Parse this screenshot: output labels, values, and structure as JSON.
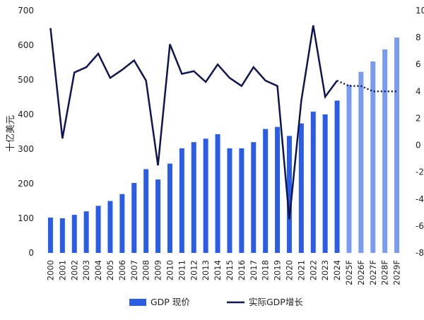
{
  "chart_data": {
    "type": "bar+line",
    "categories": [
      "2000",
      "2001",
      "2002",
      "2003",
      "2004",
      "2005",
      "2006",
      "2007",
      "2008",
      "2009",
      "2010",
      "2011",
      "2012",
      "2013",
      "2014",
      "2015",
      "2016",
      "2017",
      "2018",
      "2019",
      "2020",
      "2021",
      "2022",
      "2023",
      "2024",
      "2025F",
      "2026F",
      "2027F",
      "2028F",
      "2029F"
    ],
    "series": [
      {
        "name": "GDP 现价",
        "type": "bar",
        "axis": "left",
        "color": "#2b5ce6",
        "forecast_color": "#7a9cf0",
        "values": [
          102,
          100,
          110,
          120,
          136,
          150,
          170,
          202,
          242,
          212,
          258,
          302,
          320,
          330,
          343,
          302,
          302,
          320,
          358,
          364,
          338,
          374,
          408,
          400,
          440,
          486,
          523,
          553,
          588,
          622
        ]
      },
      {
        "name": "实际GDP增长",
        "type": "line",
        "axis": "right",
        "color": "#0d1650",
        "values": [
          8.7,
          0.5,
          5.4,
          5.8,
          6.8,
          5.0,
          5.6,
          6.3,
          4.8,
          -1.5,
          7.5,
          5.3,
          5.5,
          4.7,
          6.0,
          5.0,
          4.4,
          5.8,
          4.8,
          4.4,
          -5.5,
          3.3,
          8.9,
          3.6,
          4.8,
          4.4,
          4.4,
          4.0,
          4.0,
          4.0
        ],
        "forecast_from_index": 24
      }
    ],
    "ylabel": "十亿美元",
    "ylim": [
      0,
      700
    ],
    "yticks": [
      0,
      100,
      200,
      300,
      400,
      500,
      600,
      700
    ],
    "y2lim": [
      -8,
      10
    ],
    "y2ticks": [
      -8,
      -6,
      -4,
      -2,
      0,
      2,
      4,
      6,
      8,
      10
    ],
    "forecast_start_index": 25,
    "grid": false,
    "legend_position": "bottom"
  }
}
